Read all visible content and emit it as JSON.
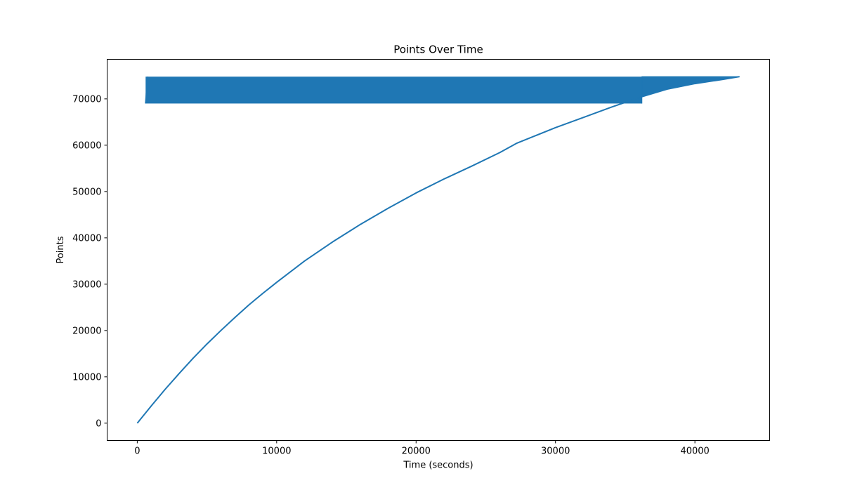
{
  "chart_data": {
    "type": "line",
    "title": "Points Over Time",
    "xlabel": "Time (seconds)",
    "ylabel": "Points",
    "xlim": [
      -2160,
      45360
    ],
    "ylim": [
      -3740,
      78540
    ],
    "xticks": [
      0,
      10000,
      20000,
      30000,
      40000
    ],
    "xtick_labels": [
      "0",
      "10000",
      "20000",
      "30000",
      "40000"
    ],
    "yticks": [
      0,
      10000,
      20000,
      30000,
      40000,
      50000,
      60000,
      70000
    ],
    "ytick_labels": [
      "0",
      "10000",
      "20000",
      "30000",
      "40000",
      "50000",
      "60000",
      "70000"
    ],
    "grid": false,
    "legend": "none",
    "series": [
      {
        "color": "#1f77b4",
        "segments": [
          {
            "description": "continuous rising curve",
            "x": [
              0,
              1000,
              2000,
              3000,
              4000,
              5000,
              6000,
              7000,
              8000,
              9000,
              10000,
              12000,
              14000,
              16000,
              18000,
              20000,
              22000,
              24000,
              26000,
              27200,
              30000,
              32000,
              34000,
              36000,
              38000,
              40000,
              42000,
              43200
            ],
            "y": [
              0,
              3700,
              7300,
              10700,
              14000,
              17100,
              20000,
              22800,
              25500,
              28000,
              30400,
              35000,
              39100,
              42900,
              46400,
              49700,
              52700,
              55500,
              58400,
              60400,
              63800,
              66000,
              68200,
              70300,
              72100,
              73300,
              74200,
              74800
            ]
          },
          {
            "description": "dense oscillation band",
            "x_range": [
              600,
              36200
            ],
            "y_low": 69000,
            "y_high": 74800
          }
        ]
      }
    ]
  }
}
